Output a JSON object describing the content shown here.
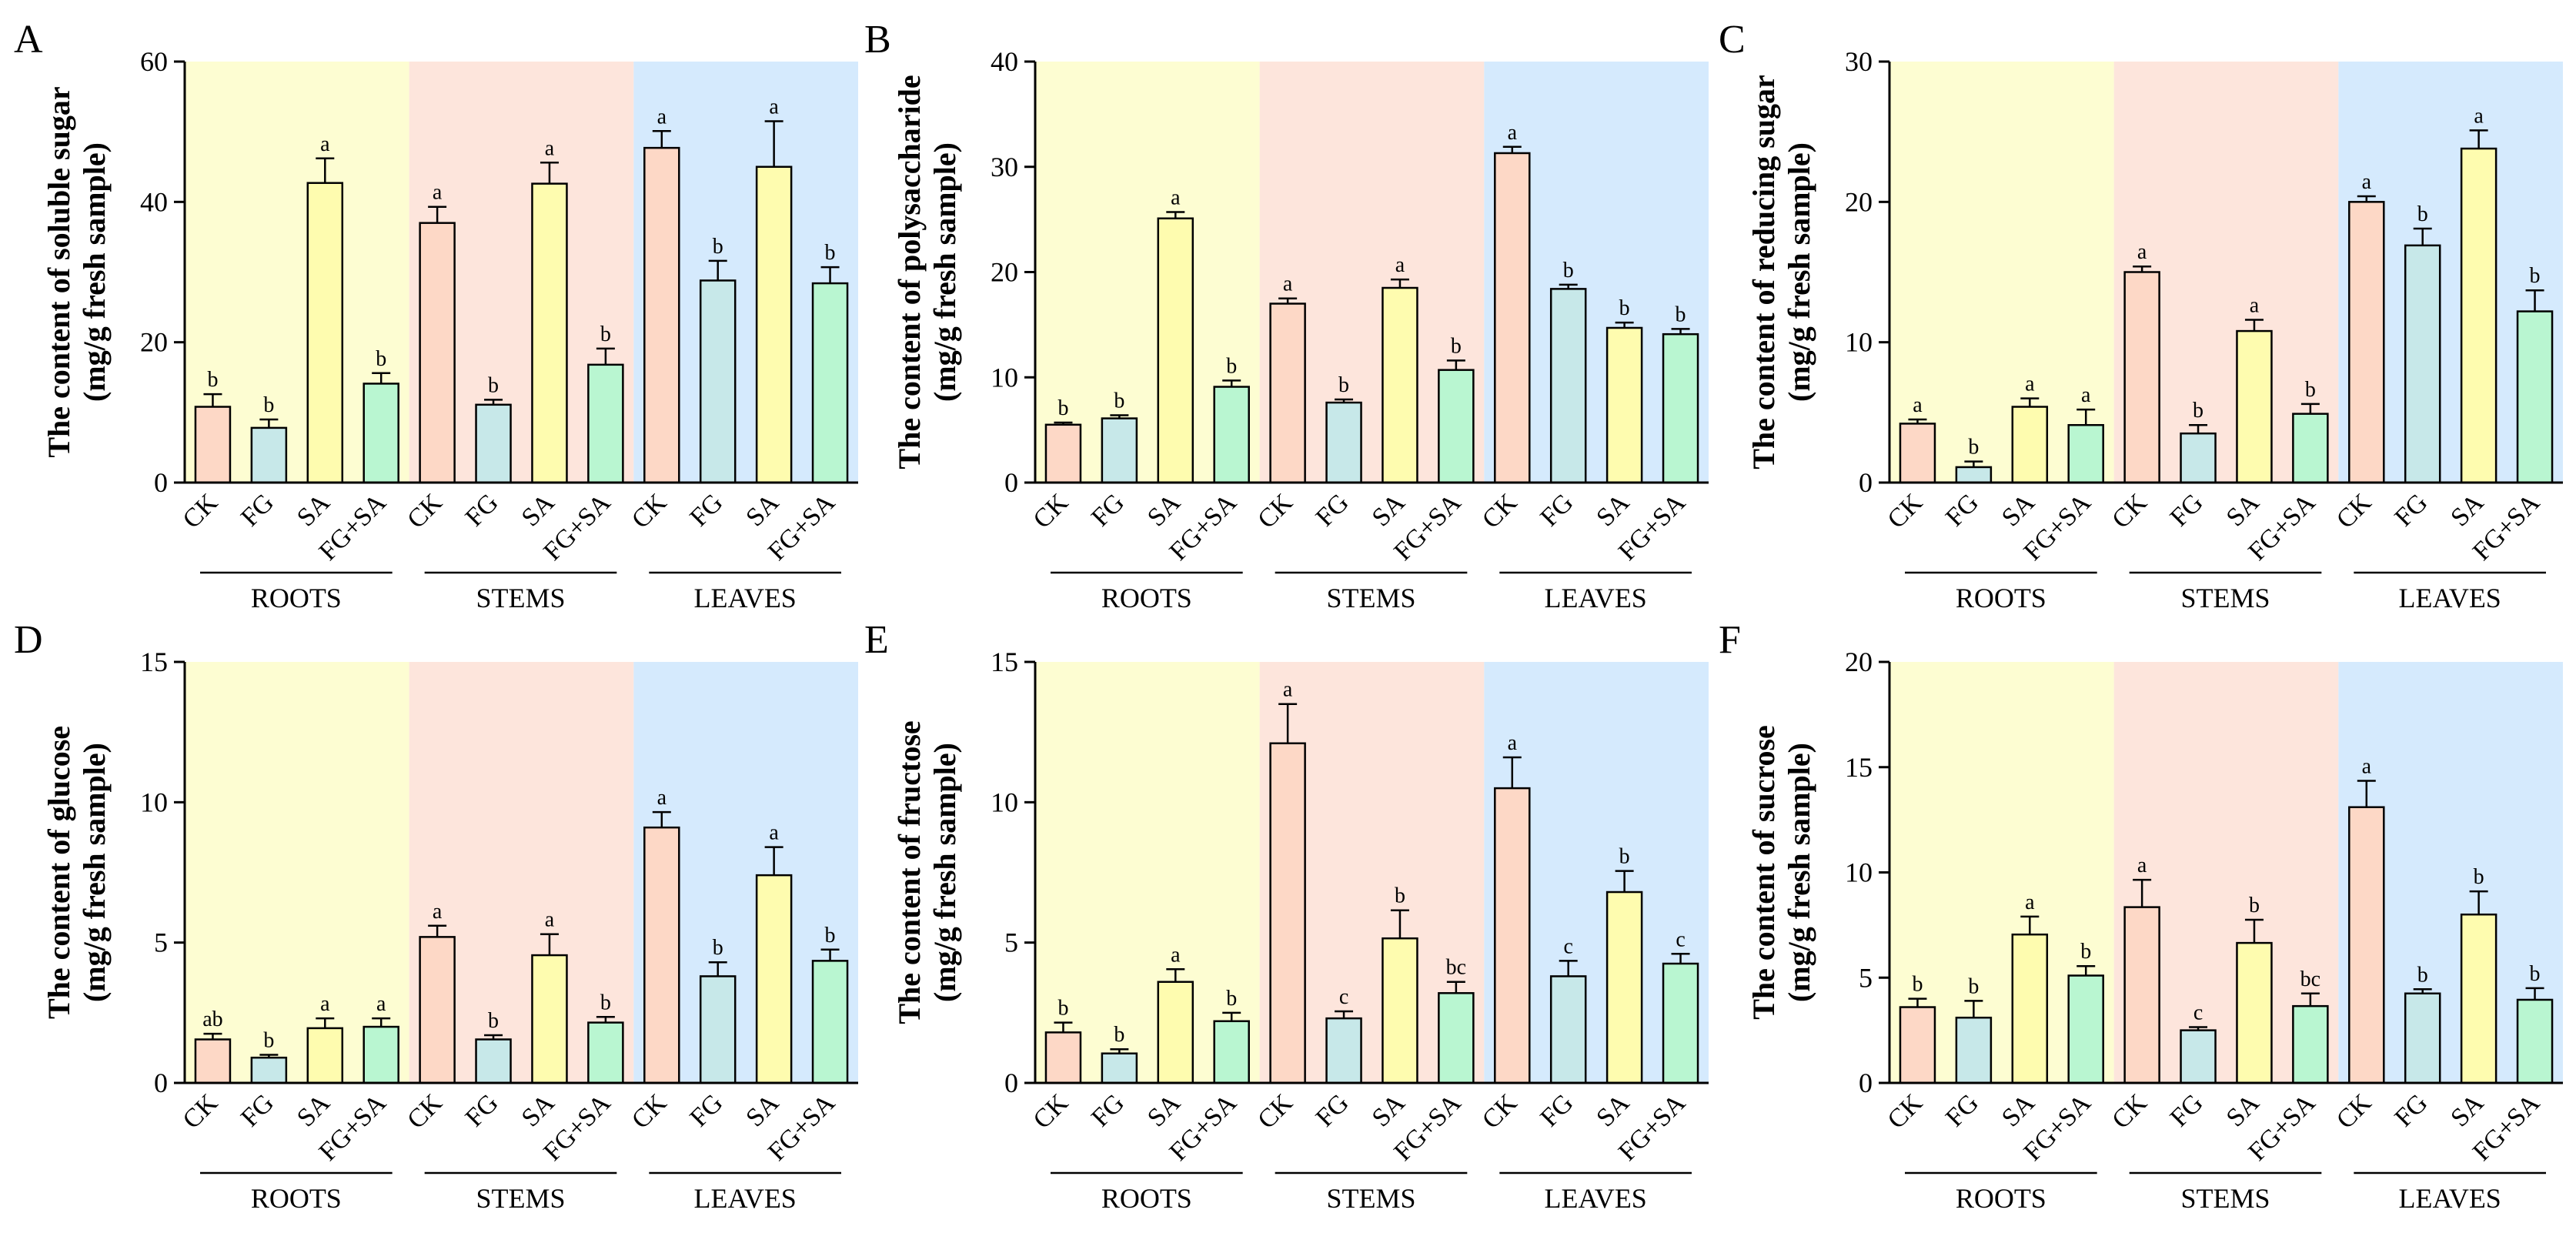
{
  "figure": {
    "categories": [
      "CK",
      "FG",
      "SA",
      "FG+SA"
    ],
    "organs": [
      "ROOTS",
      "STEMS",
      "LEAVES"
    ],
    "colors": {
      "bands": [
        "#fdfdd2",
        "#fde5dc",
        "#d5eafd"
      ],
      "bars": [
        "#fdd8c6",
        "#c7e8e9",
        "#fefcaf",
        "#b9f6d1"
      ],
      "stroke": "#000000"
    }
  },
  "chart_data": [
    {
      "type": "bar",
      "panel": "A",
      "ylabel": [
        "The content of soluble sugar",
        "(mg/g fresh sample)"
      ],
      "ylim": [
        0,
        60
      ],
      "yticks": [
        0,
        20,
        40,
        60
      ],
      "groups": [
        "ROOTS",
        "STEMS",
        "LEAVES"
      ],
      "categories": [
        "CK",
        "FG",
        "SA",
        "FG+SA"
      ],
      "values": [
        [
          10.8,
          7.8,
          42.7,
          14.1
        ],
        [
          37.0,
          11.1,
          42.6,
          16.8
        ],
        [
          47.7,
          28.8,
          45.0,
          28.4
        ]
      ],
      "errors": [
        [
          1.8,
          1.2,
          3.5,
          1.5
        ],
        [
          2.3,
          0.7,
          3.0,
          2.3
        ],
        [
          2.4,
          2.8,
          6.5,
          2.3
        ]
      ],
      "labels": [
        [
          "b",
          "b",
          "a",
          "b"
        ],
        [
          "a",
          "b",
          "a",
          "b"
        ],
        [
          "a",
          "b",
          "a",
          "b"
        ]
      ]
    },
    {
      "type": "bar",
      "panel": "B",
      "ylabel": [
        "The content of polysaccharide",
        "(mg/g fresh sample)"
      ],
      "ylim": [
        0,
        40
      ],
      "yticks": [
        0,
        10,
        20,
        30,
        40
      ],
      "groups": [
        "ROOTS",
        "STEMS",
        "LEAVES"
      ],
      "categories": [
        "CK",
        "FG",
        "SA",
        "FG+SA"
      ],
      "values": [
        [
          5.5,
          6.1,
          25.1,
          9.1
        ],
        [
          17.0,
          7.6,
          18.5,
          10.7
        ],
        [
          31.3,
          18.4,
          14.7,
          14.1
        ]
      ],
      "errors": [
        [
          0.2,
          0.3,
          0.6,
          0.6
        ],
        [
          0.5,
          0.3,
          0.8,
          0.9
        ],
        [
          0.6,
          0.4,
          0.5,
          0.5
        ]
      ],
      "labels": [
        [
          "b",
          "b",
          "a",
          "b"
        ],
        [
          "a",
          "b",
          "a",
          "b"
        ],
        [
          "a",
          "b",
          "b",
          "b"
        ]
      ]
    },
    {
      "type": "bar",
      "panel": "C",
      "ylabel": [
        "The content of reducing sugar",
        "(mg/g fresh sample)"
      ],
      "ylim": [
        0,
        30
      ],
      "yticks": [
        0,
        10,
        20,
        30
      ],
      "groups": [
        "ROOTS",
        "STEMS",
        "LEAVES"
      ],
      "categories": [
        "CK",
        "FG",
        "SA",
        "FG+SA"
      ],
      "values": [
        [
          4.2,
          1.1,
          5.4,
          4.1
        ],
        [
          15.0,
          3.5,
          10.8,
          4.9
        ],
        [
          20.0,
          16.9,
          23.8,
          12.2
        ]
      ],
      "errors": [
        [
          0.3,
          0.4,
          0.6,
          1.1
        ],
        [
          0.4,
          0.6,
          0.8,
          0.7
        ],
        [
          0.4,
          1.2,
          1.3,
          1.5
        ]
      ],
      "labels": [
        [
          "a",
          "b",
          "a",
          "a"
        ],
        [
          "a",
          "b",
          "a",
          "b"
        ],
        [
          "a",
          "b",
          "a",
          "b"
        ]
      ]
    },
    {
      "type": "bar",
      "panel": "D",
      "ylabel": [
        "The content of glucose",
        "(mg/g fresh sample)"
      ],
      "ylim": [
        0,
        15
      ],
      "yticks": [
        0,
        5,
        10,
        15
      ],
      "groups": [
        "ROOTS",
        "STEMS",
        "LEAVES"
      ],
      "categories": [
        "CK",
        "FG",
        "SA",
        "FG+SA"
      ],
      "values": [
        [
          1.55,
          0.9,
          1.95,
          2.0
        ],
        [
          5.2,
          1.55,
          4.55,
          2.15
        ],
        [
          9.1,
          3.8,
          7.4,
          4.35
        ]
      ],
      "errors": [
        [
          0.2,
          0.1,
          0.35,
          0.3
        ],
        [
          0.4,
          0.15,
          0.75,
          0.2
        ],
        [
          0.55,
          0.5,
          1.0,
          0.4
        ]
      ],
      "labels": [
        [
          "ab",
          "b",
          "a",
          "a"
        ],
        [
          "a",
          "b",
          "a",
          "b"
        ],
        [
          "a",
          "b",
          "a",
          "b"
        ]
      ]
    },
    {
      "type": "bar",
      "panel": "E",
      "ylabel": [
        "The content of fructose",
        "(mg/g fresh sample)"
      ],
      "ylim": [
        0,
        15
      ],
      "yticks": [
        0,
        5,
        10,
        15
      ],
      "groups": [
        "ROOTS",
        "STEMS",
        "LEAVES"
      ],
      "categories": [
        "CK",
        "FG",
        "SA",
        "FG+SA"
      ],
      "values": [
        [
          1.8,
          1.05,
          3.6,
          2.2
        ],
        [
          12.1,
          2.3,
          5.15,
          3.2
        ],
        [
          10.5,
          3.8,
          6.8,
          4.25
        ]
      ],
      "errors": [
        [
          0.35,
          0.15,
          0.45,
          0.3
        ],
        [
          1.4,
          0.25,
          1.0,
          0.4
        ],
        [
          1.1,
          0.55,
          0.75,
          0.35
        ]
      ],
      "labels": [
        [
          "b",
          "b",
          "a",
          "b"
        ],
        [
          "a",
          "c",
          "b",
          "bc"
        ],
        [
          "a",
          "c",
          "b",
          "c"
        ]
      ]
    },
    {
      "type": "bar",
      "panel": "F",
      "ylabel": [
        "The content of sucrose",
        "(mg/g fresh sample)"
      ],
      "ylim": [
        0,
        20
      ],
      "yticks": [
        0,
        5,
        10,
        15,
        20
      ],
      "groups": [
        "ROOTS",
        "STEMS",
        "LEAVES"
      ],
      "categories": [
        "CK",
        "FG",
        "SA",
        "FG+SA"
      ],
      "values": [
        [
          3.6,
          3.1,
          7.05,
          5.1
        ],
        [
          8.35,
          2.5,
          6.65,
          3.65
        ],
        [
          13.1,
          4.25,
          8.0,
          3.95
        ]
      ],
      "errors": [
        [
          0.4,
          0.8,
          0.85,
          0.45
        ],
        [
          1.3,
          0.15,
          1.1,
          0.6
        ],
        [
          1.25,
          0.2,
          1.1,
          0.55
        ]
      ],
      "labels": [
        [
          "b",
          "b",
          "a",
          "b"
        ],
        [
          "a",
          "c",
          "b",
          "bc"
        ],
        [
          "a",
          "b",
          "b",
          "b"
        ]
      ]
    }
  ]
}
